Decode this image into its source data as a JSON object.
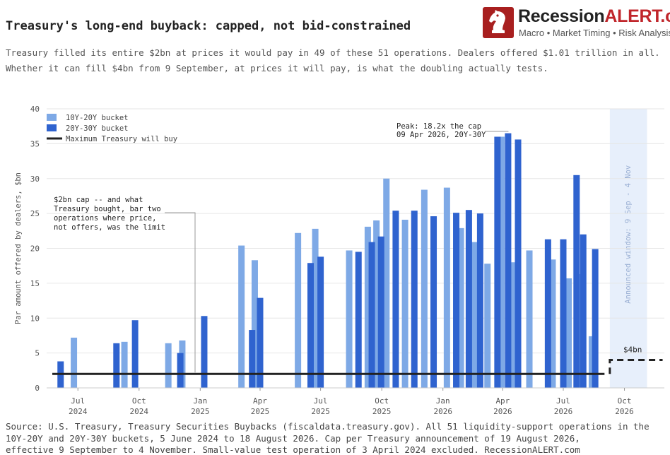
{
  "title": "Treasury's long-end buyback: capped, not bid-constrained",
  "subtitle": [
    "Treasury filled its entire $2bn at prices it would pay in 49 of these 51 operations. Dealers offered $1.01 trillion in all.",
    "Whether it can fill $4bn from 9 September, at prices it will pay, is what the doubling actually tests."
  ],
  "logo": {
    "name_main": "Recession",
    "name_accent": "ALERT.com",
    "tagline": "Macro • Market Timing • Risk Analysis",
    "icon": "chess-knight-icon"
  },
  "source": [
    "Source: U.S. Treasury, Treasury Securities Buybacks (fiscaldata.treasury.gov). All 51 liquidity-support operations in the",
    "10Y-20Y and 20Y-30Y buckets, 5 June 2024 to 18 August 2026. Cap per Treasury announcement of 19 August 2026,",
    "effective 9 September to 4 November. Small-value test operation of 3 April 2024 excluded.    RecessionALERT.com"
  ],
  "colors": {
    "bucket_10_20": "#7ea9e6",
    "bucket_20_30": "#2f63cf",
    "cap_line": "#222222",
    "window_shade": "#e7effb",
    "window_text": "#9bb0d4",
    "grid": "#e6e6e6",
    "annotation_line": "#999999"
  },
  "chart_data": {
    "type": "bar",
    "ylabel": "Par amount offered by dealers, $bn",
    "xlabel": "",
    "ylim": [
      0,
      40
    ],
    "yticks": [
      0,
      5,
      10,
      15,
      20,
      25,
      30,
      35,
      40
    ],
    "xlim": [
      "2024-05-15",
      "2026-11-30"
    ],
    "grid": true,
    "legend_position": "top-left",
    "legend": [
      {
        "label": "10Y-20Y bucket",
        "key": "10Y-20Y"
      },
      {
        "label": "20Y-30Y bucket",
        "key": "20Y-30Y"
      },
      {
        "label": "Maximum Treasury will buy",
        "key": "cap"
      }
    ],
    "xticks": [
      {
        "date": "2024-07-01",
        "line1": "Jul",
        "line2": "2024"
      },
      {
        "date": "2024-10-01",
        "line1": "Oct",
        "line2": "2024"
      },
      {
        "date": "2025-01-01",
        "line1": "Jan",
        "line2": "2025"
      },
      {
        "date": "2025-04-01",
        "line1": "Apr",
        "line2": "2025"
      },
      {
        "date": "2025-07-01",
        "line1": "Jul",
        "line2": "2025"
      },
      {
        "date": "2025-10-01",
        "line1": "Oct",
        "line2": "2025"
      },
      {
        "date": "2026-01-01",
        "line1": "Jan",
        "line2": "2026"
      },
      {
        "date": "2026-04-01",
        "line1": "Apr",
        "line2": "2026"
      },
      {
        "date": "2026-07-01",
        "line1": "Jul",
        "line2": "2026"
      },
      {
        "date": "2026-10-01",
        "line1": "Oct",
        "line2": "2026"
      }
    ],
    "series": [
      {
        "name": "10Y-20Y bucket",
        "key": "10Y-20Y",
        "points": [
          {
            "date": "2024-06-25",
            "value": 7.2
          },
          {
            "date": "2024-09-09",
            "value": 6.6
          },
          {
            "date": "2024-11-14",
            "value": 6.4
          },
          {
            "date": "2024-12-05",
            "value": 6.8
          },
          {
            "date": "2025-03-04",
            "value": 20.4
          },
          {
            "date": "2025-03-24",
            "value": 18.3
          },
          {
            "date": "2025-05-28",
            "value": 22.2
          },
          {
            "date": "2025-06-23",
            "value": 22.8
          },
          {
            "date": "2025-08-13",
            "value": 19.7
          },
          {
            "date": "2025-09-10",
            "value": 23.1
          },
          {
            "date": "2025-09-23",
            "value": 24.0
          },
          {
            "date": "2025-10-08",
            "value": 30.0
          },
          {
            "date": "2025-11-05",
            "value": 24.1
          },
          {
            "date": "2025-12-04",
            "value": 28.4
          },
          {
            "date": "2026-01-07",
            "value": 28.7
          },
          {
            "date": "2026-01-28",
            "value": 22.9
          },
          {
            "date": "2026-02-18",
            "value": 20.9
          },
          {
            "date": "2026-03-09",
            "value": 17.8
          },
          {
            "date": "2026-03-30",
            "value": 36.0
          },
          {
            "date": "2026-04-16",
            "value": 18.0
          },
          {
            "date": "2026-05-11",
            "value": 19.7
          },
          {
            "date": "2026-06-15",
            "value": 18.4
          },
          {
            "date": "2026-07-09",
            "value": 15.7
          },
          {
            "date": "2026-07-27",
            "value": 16.3
          },
          {
            "date": "2026-08-13",
            "value": 7.4
          }
        ]
      },
      {
        "name": "20Y-30Y bucket",
        "key": "20Y-30Y",
        "points": [
          {
            "date": "2024-06-05",
            "value": 3.8
          },
          {
            "date": "2024-08-28",
            "value": 6.4
          },
          {
            "date": "2024-09-25",
            "value": 9.7
          },
          {
            "date": "2024-12-02",
            "value": 5.0
          },
          {
            "date": "2025-01-07",
            "value": 10.3
          },
          {
            "date": "2025-03-20",
            "value": 8.3
          },
          {
            "date": "2025-04-01",
            "value": 12.9
          },
          {
            "date": "2025-06-16",
            "value": 17.9
          },
          {
            "date": "2025-07-01",
            "value": 18.8
          },
          {
            "date": "2025-08-27",
            "value": 19.5
          },
          {
            "date": "2025-09-16",
            "value": 20.9
          },
          {
            "date": "2025-09-30",
            "value": 21.7
          },
          {
            "date": "2025-10-22",
            "value": 25.4
          },
          {
            "date": "2025-11-19",
            "value": 25.4
          },
          {
            "date": "2025-12-18",
            "value": 24.6
          },
          {
            "date": "2026-01-21",
            "value": 25.1
          },
          {
            "date": "2026-02-09",
            "value": 25.5
          },
          {
            "date": "2026-02-26",
            "value": 25.0
          },
          {
            "date": "2026-03-24",
            "value": 36.0
          },
          {
            "date": "2026-04-09",
            "value": 36.5
          },
          {
            "date": "2026-04-24",
            "value": 35.6
          },
          {
            "date": "2026-06-08",
            "value": 21.3
          },
          {
            "date": "2026-07-01",
            "value": 21.3
          },
          {
            "date": "2026-07-21",
            "value": 30.5
          },
          {
            "date": "2026-07-31",
            "value": 22.0
          },
          {
            "date": "2026-08-18",
            "value": 19.9
          }
        ]
      }
    ],
    "cap": {
      "value": 2.0,
      "from": "2024-06-01",
      "to": "2026-09-01"
    },
    "new_cap": {
      "value": 4.0,
      "from": "2026-09-09",
      "to": "2026-11-04",
      "label": "$4bn"
    },
    "window": {
      "from": "2026-09-09",
      "to": "2026-11-04",
      "label": "Announced window: 9 Sep - 4 Nov"
    },
    "annotations": {
      "cap_note": [
        "$2bn cap -- and what",
        "Treasury bought, bar two",
        "operations where price,",
        "not offers, was the limit"
      ],
      "peak_note": [
        "Peak: 18.2x the cap",
        "09 Apr 2026, 20Y-30Y"
      ]
    }
  }
}
